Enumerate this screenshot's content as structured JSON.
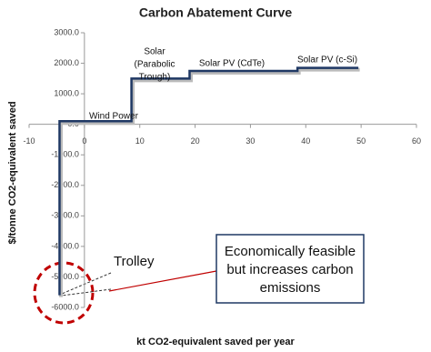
{
  "chart_data": {
    "type": "line",
    "title": "Carbon Abatement Curve",
    "x_label": "kt CO2-equivalent saved per year",
    "y_label": "$/tonne CO2-equivalent saved",
    "x": [
      -4.5,
      -4.5,
      8.5,
      8.5,
      19,
      19,
      38.5,
      38.5,
      49.5
    ],
    "values": [
      -5600,
      100,
      100,
      1500,
      1500,
      1750,
      1750,
      1850,
      1850
    ],
    "color": "#1f3864",
    "xlim": [
      -10,
      60
    ],
    "xticks": [
      -10,
      0,
      10,
      20,
      30,
      40,
      50,
      60
    ],
    "ylim": [
      -6000,
      3000
    ],
    "yticks": [
      {
        "value": -6000,
        "label": "-6000.0"
      },
      {
        "value": -5000,
        "label": "-5000.0"
      },
      {
        "value": -4000,
        "label": "-4000.0"
      },
      {
        "value": -3000,
        "label": "-3000.0"
      },
      {
        "value": -2000,
        "label": "-2000.0"
      },
      {
        "value": -1000,
        "label": "-1000.0"
      },
      {
        "value": 0,
        "label": "0.0"
      },
      {
        "value": 1000,
        "label": "1000.0"
      },
      {
        "value": 2000,
        "label": "2000.0"
      },
      {
        "value": 3000,
        "label": "3000.0"
      }
    ],
    "annotations": [
      [
        "Wind Power"
      ],
      [
        "Solar",
        "(Parabolic",
        "Trough)"
      ],
      [
        "Solar PV (CdTe)"
      ],
      [
        "Solar PV (c-Si)"
      ],
      [
        "Trolley"
      ],
      [
        "Economically feasible",
        "but increases carbon",
        "emissions"
      ]
    ]
  }
}
